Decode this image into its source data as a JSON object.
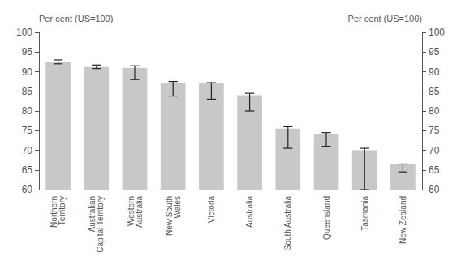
{
  "chart_data": {
    "type": "bar",
    "categories": [
      "Northern\nTerritory",
      "Australian\nCapital Territory",
      "Western\nAustralia",
      "New South\nWales",
      "Victoria",
      "Australia",
      "South Australia",
      "Queensland",
      "Tasmania",
      "New Zealand"
    ],
    "values": [
      92.5,
      91.2,
      91.0,
      87.2,
      87.0,
      84.0,
      75.5,
      74.0,
      70.0,
      66.5
    ],
    "error_lower": [
      92.0,
      90.8,
      88.0,
      83.8,
      83.0,
      80.0,
      70.5,
      71.0,
      60.0,
      64.5
    ],
    "error_upper": [
      93.0,
      91.7,
      91.5,
      87.5,
      87.2,
      84.5,
      76.0,
      74.5,
      70.5,
      66.5
    ],
    "color": "#c8c8c8",
    "ylabel": "Per cent (US=100)",
    "y2label": "Per cent (US=100)",
    "ylim": [
      60,
      100
    ],
    "yticks": [
      60,
      65,
      70,
      75,
      80,
      85,
      90,
      95,
      100
    ],
    "y2lim": [
      60,
      100
    ],
    "y2ticks": [
      60,
      65,
      70,
      75,
      80,
      85,
      90,
      95,
      100
    ],
    "grid": false
  }
}
